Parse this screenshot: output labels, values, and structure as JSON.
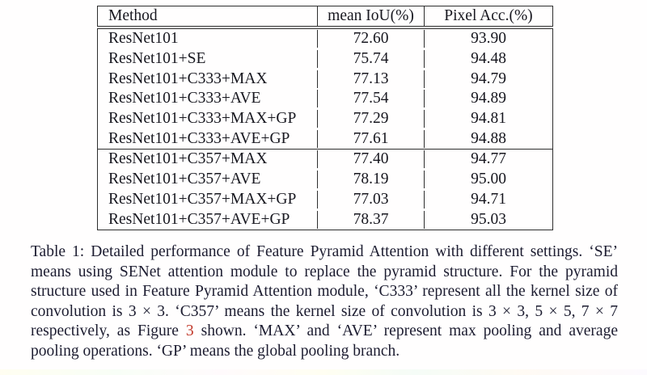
{
  "table": {
    "header": {
      "method": "Method",
      "miou": "mean IoU(%)",
      "pixel_acc": "Pixel Acc.(%)"
    },
    "rows": [
      {
        "method": "ResNet101",
        "miou": "72.60",
        "pixel_acc": "93.90"
      },
      {
        "method": "ResNet101+SE",
        "miou": "75.74",
        "pixel_acc": "94.48"
      },
      {
        "method": "ResNet101+C333+MAX",
        "miou": "77.13",
        "pixel_acc": "94.79"
      },
      {
        "method": "ResNet101+C333+AVE",
        "miou": "77.54",
        "pixel_acc": "94.89"
      },
      {
        "method": "ResNet101+C333+MAX+GP",
        "miou": "77.29",
        "pixel_acc": "94.81"
      },
      {
        "method": "ResNet101+C333+AVE+GP",
        "miou": "77.61",
        "pixel_acc": "94.88"
      },
      {
        "method": "ResNet101+C357+MAX",
        "miou": "77.40",
        "pixel_acc": "94.77"
      },
      {
        "method": "ResNet101+C357+AVE",
        "miou": "78.19",
        "pixel_acc": "95.00"
      },
      {
        "method": "ResNet101+C357+MAX+GP",
        "miou": "77.03",
        "pixel_acc": "94.71"
      },
      {
        "method": "ResNet101+C357+AVE+GP",
        "miou": "78.37",
        "pixel_acc": "95.03"
      }
    ]
  },
  "caption": {
    "part1": "Table 1: Detailed performance of Feature Pyramid Attention with different settings. ‘SE’ means using SENet attention module to replace the pyramid structure. For the pyramid structure used in Feature Pyramid Attention module, ‘C333’ represent all the kernel size of convolution is 3 × 3. ‘C357’ means the kernel size of convolution is 3 × 3, 5 × 5, 7 × 7 respectively, as Figure ",
    "figure_number": "3",
    "part2": " shown. ‘MAX’ and ‘AVE’ represent max pooling and average pooling operations. ‘GP’ means the global pooling branch."
  },
  "colors": {
    "text": "#17171f",
    "caption_text": "#1c1c30",
    "figure_link": "#c23a2c",
    "border": "#2e2e2e",
    "background": "#ffffff"
  }
}
